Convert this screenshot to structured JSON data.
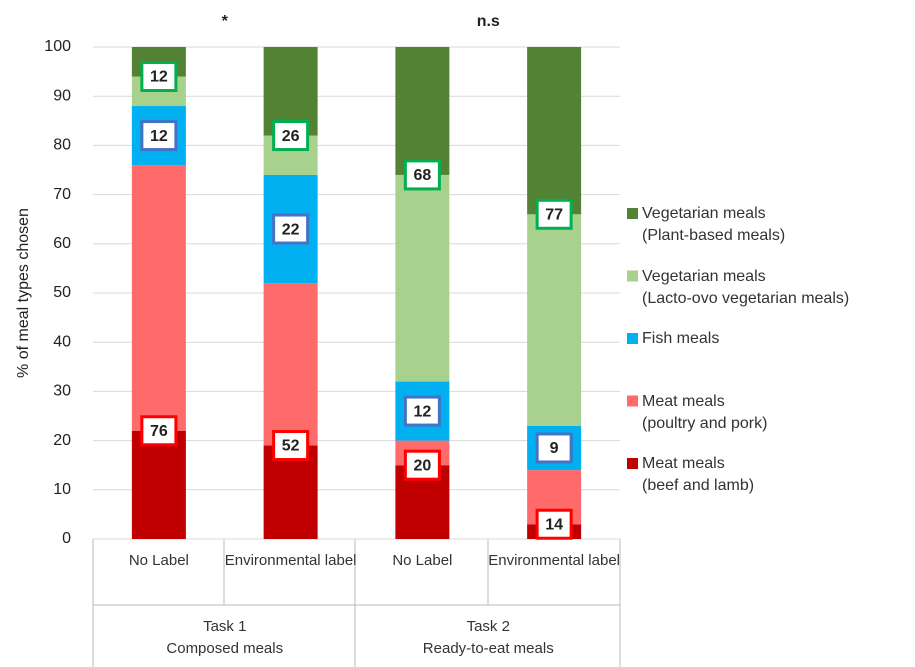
{
  "chart_data": {
    "type": "stacked_bar",
    "y_label": "% of meal types chosen",
    "categories": [
      "No Label",
      "Environmental label",
      "No Label",
      "Environmental label"
    ],
    "groups": [
      {
        "label": "Task 1\nComposed meals",
        "annotation": "*"
      },
      {
        "label": "Task 2\nReady-to-eat meals",
        "annotation": "n.s"
      }
    ],
    "series": [
      {
        "name": "Meat meals\n(beef and lamb)",
        "color": "#c00000",
        "values": [
          22,
          19,
          15,
          3
        ]
      },
      {
        "name": "Meat meals\n(poultry and pork)",
        "color": "#ff6b6b",
        "values": [
          54,
          33,
          5,
          11
        ]
      },
      {
        "name": "Fish meals",
        "color": "#00b0f0",
        "values": [
          12,
          22,
          12,
          9
        ]
      },
      {
        "name": "Vegetarian meals\n(Lacto-ovo vegetarian meals)",
        "color": "#a9d18e",
        "values": [
          6,
          8,
          42,
          43
        ]
      },
      {
        "name": "Vegetarian meals\n(Plant-based meals)",
        "color": "#548235",
        "values": [
          6,
          18,
          26,
          34
        ]
      }
    ],
    "total_labels": [
      {
        "color": "#ff0000",
        "values": [
          76,
          52,
          20,
          14
        ]
      },
      {
        "color": "#4472c4",
        "values": [
          12,
          22,
          12,
          9
        ]
      },
      {
        "color": "#00b050",
        "values": [
          12,
          26,
          68,
          77
        ]
      }
    ],
    "ylim": [
      0,
      100
    ],
    "yticks": [
      0,
      10,
      20,
      30,
      40,
      50,
      60,
      70,
      80,
      90,
      100
    ],
    "grid": true
  }
}
